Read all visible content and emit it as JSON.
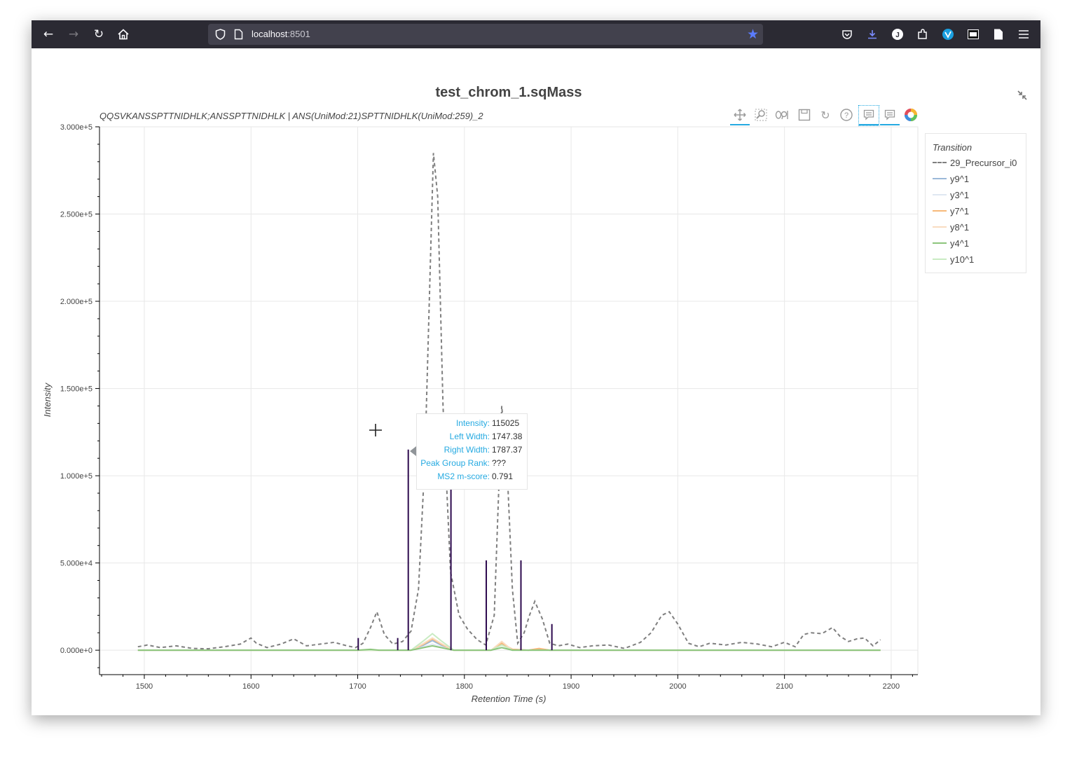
{
  "browser": {
    "url_host": "localhost",
    "url_port": ":8501",
    "icons": [
      "back-arrow-icon",
      "forward-arrow-icon",
      "reload-icon",
      "home-icon",
      "shield-icon",
      "page-icon",
      "bookmark-star-icon",
      "pocket-icon",
      "downloads-icon",
      "account-icon",
      "extensions-icon",
      "extension-icon",
      "extension-icon",
      "reader-icon",
      "menu-icon"
    ],
    "colors": {
      "toolbar": "#2b2a33",
      "urlbar": "#42414d",
      "star": "#5a7cff"
    }
  },
  "plot": {
    "title": "test_chrom_1.sqMass",
    "subtitle": "QQSVKANSSPTTNIDHLK;ANSSPTTNIDHLK | ANS(UniMod:21)SPTTNIDHLK(UniMod:259)_2",
    "tool_icons": [
      "pan-icon",
      "box-zoom-icon",
      "wheel-zoom-icon",
      "save-icon",
      "reset-icon",
      "help-icon",
      "hover-icon",
      "hover-icon",
      "bokeh-logo-icon"
    ]
  },
  "legend": {
    "title": "Transition",
    "items": [
      {
        "label": "29_Precursor_i0",
        "color": "#7f7f7f",
        "dash": true
      },
      {
        "label": "y9^1",
        "color": "#9bb9d8"
      },
      {
        "label": "y3^1",
        "color": "#dfe7f2"
      },
      {
        "label": "y7^1",
        "color": "#f7b97a"
      },
      {
        "label": "y8^1",
        "color": "#f9dcc0"
      },
      {
        "label": "y4^1",
        "color": "#8cc57c"
      },
      {
        "label": "y10^1",
        "color": "#c9ebc3"
      }
    ]
  },
  "tooltip": {
    "rows": [
      {
        "key": "Intensity:",
        "value": "115025"
      },
      {
        "key": "Left Width:",
        "value": "1747.38"
      },
      {
        "key": "Right Width:",
        "value": "1787.37"
      },
      {
        "key": "Peak Group Rank:",
        "value": "???"
      },
      {
        "key": "MS2 m-score:",
        "value": "0.791"
      }
    ]
  },
  "chart_data": {
    "type": "line",
    "xlabel": "Retention Time (s)",
    "ylabel": "Intensity",
    "xlim": [
      1458,
      2225
    ],
    "ylim": [
      -14000,
      300000
    ],
    "x_ticks": [
      1500,
      1600,
      1700,
      1800,
      1900,
      2000,
      2100,
      2200
    ],
    "x_tick_labels": [
      "1500",
      "1600",
      "1700",
      "1800",
      "1900",
      "2000",
      "2100",
      "2200"
    ],
    "y_ticks": [
      0,
      50000,
      100000,
      150000,
      200000,
      250000,
      300000
    ],
    "y_tick_labels": [
      "0.000e+0",
      "5.000e+4",
      "1.000e+5",
      "1.500e+5",
      "2.000e+5",
      "2.500e+5",
      "3.000e+5"
    ],
    "grid": true,
    "series": [
      {
        "name": "29_Precursor_i0",
        "color": "#7f7f7f",
        "dash": true,
        "x": [
          1494,
          1503,
          1515,
          1530,
          1545,
          1560,
          1575,
          1590,
          1600,
          1605,
          1615,
          1628,
          1640,
          1652,
          1665,
          1678,
          1690,
          1698,
          1705,
          1712,
          1718,
          1725,
          1733,
          1742,
          1750,
          1757,
          1763,
          1768,
          1771,
          1775,
          1780,
          1787,
          1795,
          1803,
          1812,
          1820,
          1828,
          1835,
          1840,
          1845,
          1850,
          1856,
          1861,
          1866,
          1873,
          1880,
          1888,
          1897,
          1908,
          1920,
          1935,
          1950,
          1965,
          1975,
          1985,
          1992,
          2000,
          2010,
          2020,
          2030,
          2045,
          2060,
          2075,
          2088,
          2100,
          2110,
          2118,
          2125,
          2135,
          2145,
          2152,
          2160,
          2168,
          2175,
          2183,
          2190
        ],
        "y": [
          2000,
          3000,
          1500,
          2500,
          1000,
          800,
          2000,
          3500,
          7000,
          4000,
          1500,
          3500,
          6500,
          2500,
          3500,
          4500,
          2500,
          1500,
          4000,
          13000,
          22000,
          9000,
          3500,
          5000,
          11000,
          35000,
          110000,
          220000,
          285000,
          260000,
          140000,
          45000,
          20000,
          12000,
          6000,
          3000,
          20000,
          140000,
          105000,
          35000,
          4000,
          10000,
          20000,
          28000,
          18000,
          4000,
          2500,
          3500,
          1500,
          2500,
          3000,
          1000,
          4500,
          10000,
          20000,
          22000,
          15000,
          4000,
          2000,
          4000,
          3000,
          4500,
          3500,
          2000,
          4500,
          2000,
          9000,
          10000,
          9500,
          13000,
          8000,
          5000,
          6500,
          7000,
          2500,
          6000
        ]
      },
      {
        "name": "y9^1",
        "color": "#9bb9d8",
        "x": [
          1494,
          1750,
          1762,
          1770,
          1778,
          1790,
          1825,
          1835,
          1845,
          1860,
          1870,
          1880,
          2190
        ],
        "y": [
          0,
          0,
          3000,
          5500,
          3000,
          0,
          0,
          3500,
          500,
          0,
          800,
          0,
          0
        ]
      },
      {
        "name": "y3^1",
        "color": "#dfe7f2",
        "x": [
          1494,
          1750,
          1762,
          1770,
          1778,
          1790,
          1825,
          1835,
          1845,
          2190
        ],
        "y": [
          0,
          0,
          2000,
          3500,
          2000,
          0,
          0,
          1500,
          0,
          0
        ]
      },
      {
        "name": "y7^1",
        "color": "#f7b97a",
        "x": [
          1494,
          1750,
          1762,
          1770,
          1778,
          1790,
          1825,
          1835,
          1845,
          1860,
          1870,
          1880,
          2190
        ],
        "y": [
          0,
          0,
          3500,
          6500,
          3500,
          0,
          0,
          4000,
          500,
          0,
          1000,
          0,
          0
        ]
      },
      {
        "name": "y8^1",
        "color": "#f9dcc0",
        "x": [
          1494,
          1750,
          1762,
          1770,
          1778,
          1790,
          1825,
          1835,
          1845,
          2190
        ],
        "y": [
          0,
          0,
          4000,
          7000,
          4000,
          0,
          0,
          5000,
          0,
          0
        ]
      },
      {
        "name": "y4^1",
        "color": "#8cc57c",
        "x": [
          1494,
          1700,
          1712,
          1720,
          1750,
          1762,
          1770,
          1778,
          1790,
          1825,
          1835,
          1845,
          2190
        ],
        "y": [
          0,
          0,
          500,
          0,
          0,
          1500,
          2500,
          1500,
          0,
          0,
          1500,
          0,
          0
        ]
      },
      {
        "name": "y10^1",
        "color": "#c9ebc3",
        "x": [
          1494,
          1750,
          1762,
          1770,
          1778,
          1790,
          1825,
          1835,
          1845,
          2190
        ],
        "y": [
          0,
          0,
          5500,
          9500,
          5500,
          0,
          0,
          3000,
          0,
          0
        ]
      }
    ],
    "peak_boundaries": {
      "color": "#2d0a4e",
      "lines": [
        {
          "x": 1700.5,
          "y": 7000
        },
        {
          "x": 1737.5,
          "y": 7000
        },
        {
          "x": 1747.4,
          "y": 115000
        },
        {
          "x": 1787.4,
          "y": 115000
        },
        {
          "x": 1820.5,
          "y": 51500
        },
        {
          "x": 1853,
          "y": 51500
        },
        {
          "x": 1882,
          "y": 15000
        }
      ]
    }
  }
}
